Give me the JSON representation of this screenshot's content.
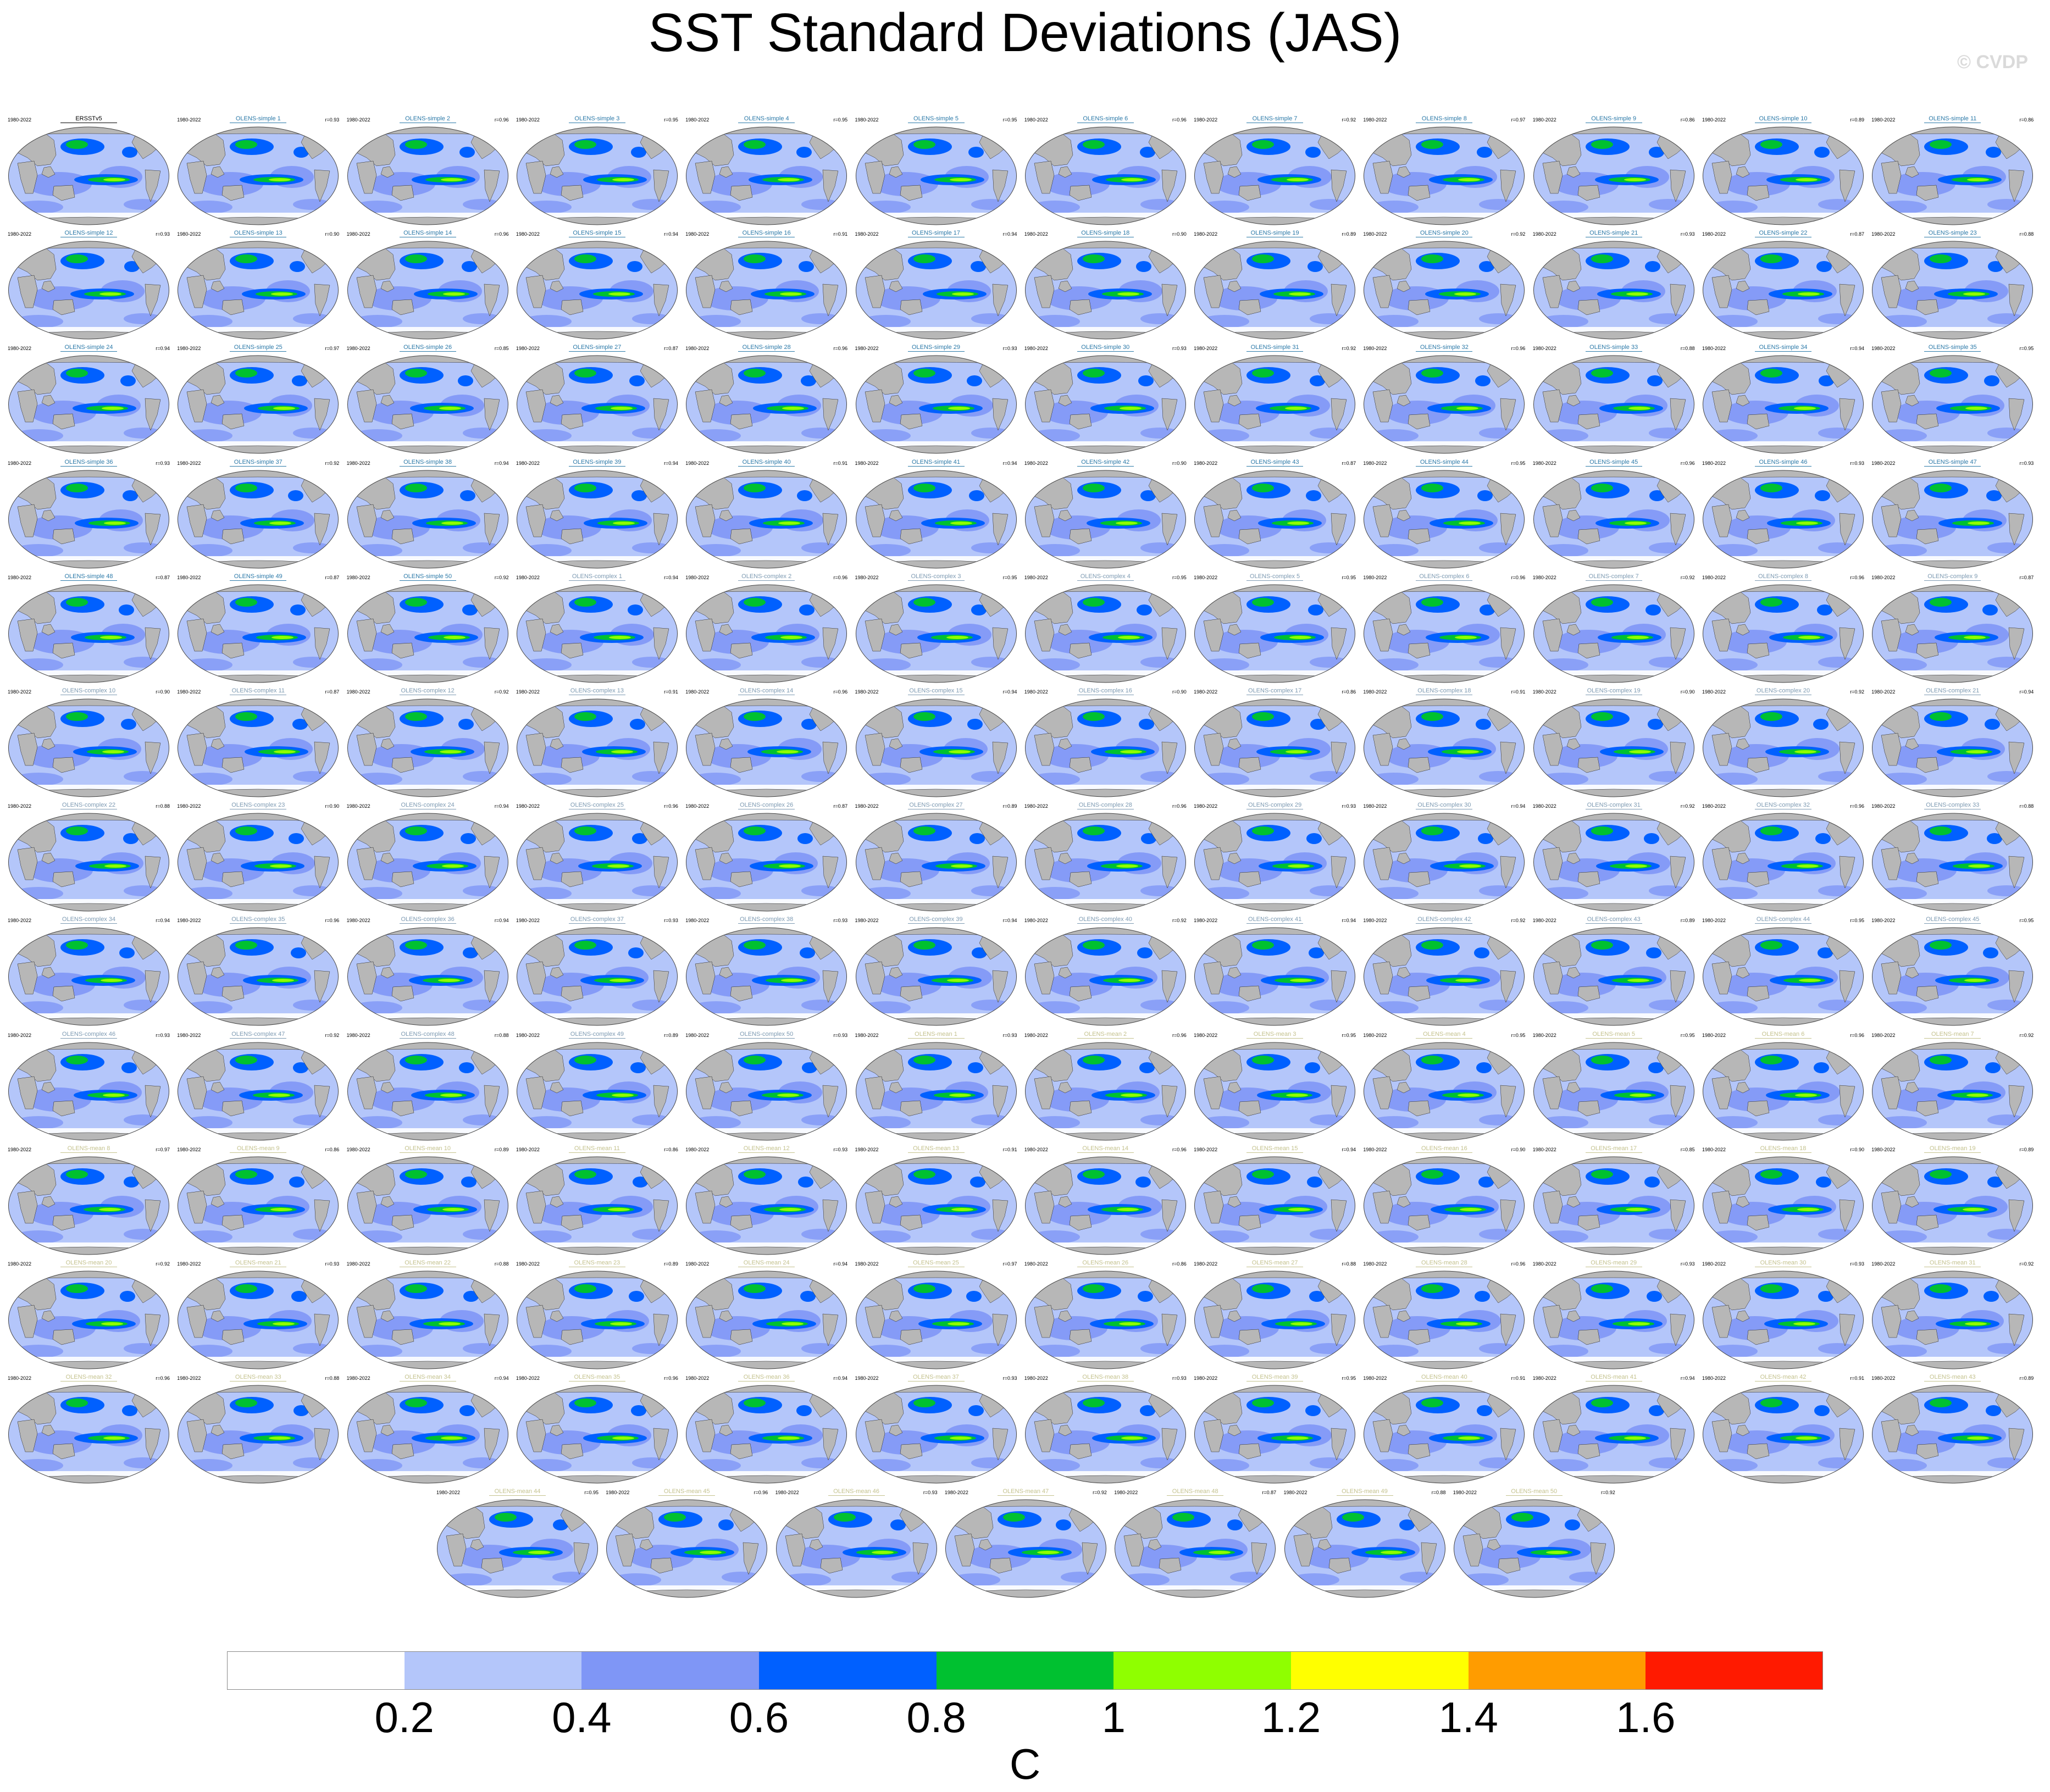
{
  "title": "SST Standard Deviations (JAS)",
  "watermark": "© CVDP",
  "colors": {
    "simple_label": "#2b79a8",
    "complex_label": "#7d9ab2",
    "mean_label": "#c4c28e",
    "obs_label": "#000000",
    "land": "#b7b7b7",
    "ocean_base": "#b5c5f5"
  },
  "chart_data": {
    "type": "heatmap",
    "title": "SST Standard Deviations (JAS)",
    "projection": "Robinson global maps",
    "period": "1980-2022",
    "panels": [
      {
        "name": "ERSSTv5",
        "r": "",
        "group": "obs"
      },
      {
        "name": "OLENS-simple 1",
        "r": "r=0.93",
        "group": "simple"
      },
      {
        "name": "OLENS-simple 2",
        "r": "r=0.96",
        "group": "simple"
      },
      {
        "name": "OLENS-simple 3",
        "r": "r=0.95",
        "group": "simple"
      },
      {
        "name": "OLENS-simple 4",
        "r": "r=0.95",
        "group": "simple"
      },
      {
        "name": "OLENS-simple 5",
        "r": "r=0.95",
        "group": "simple"
      },
      {
        "name": "OLENS-simple 6",
        "r": "r=0.96",
        "group": "simple"
      },
      {
        "name": "OLENS-simple 7",
        "r": "r=0.92",
        "group": "simple"
      },
      {
        "name": "OLENS-simple 8",
        "r": "r=0.97",
        "group": "simple"
      },
      {
        "name": "OLENS-simple 9",
        "r": "r=0.86",
        "group": "simple"
      },
      {
        "name": "OLENS-simple 10",
        "r": "r=0.89",
        "group": "simple"
      },
      {
        "name": "OLENS-simple 11",
        "r": "r=0.86",
        "group": "simple"
      },
      {
        "name": "OLENS-simple 12",
        "r": "r=0.93",
        "group": "simple"
      },
      {
        "name": "OLENS-simple 13",
        "r": "r=0.90",
        "group": "simple"
      },
      {
        "name": "OLENS-simple 14",
        "r": "r=0.96",
        "group": "simple"
      },
      {
        "name": "OLENS-simple 15",
        "r": "r=0.94",
        "group": "simple"
      },
      {
        "name": "OLENS-simple 16",
        "r": "r=0.91",
        "group": "simple"
      },
      {
        "name": "OLENS-simple 17",
        "r": "r=0.94",
        "group": "simple"
      },
      {
        "name": "OLENS-simple 18",
        "r": "r=0.90",
        "group": "simple"
      },
      {
        "name": "OLENS-simple 19",
        "r": "r=0.89",
        "group": "simple"
      },
      {
        "name": "OLENS-simple 20",
        "r": "r=0.92",
        "group": "simple"
      },
      {
        "name": "OLENS-simple 21",
        "r": "r=0.93",
        "group": "simple"
      },
      {
        "name": "OLENS-simple 22",
        "r": "r=0.87",
        "group": "simple"
      },
      {
        "name": "OLENS-simple 23",
        "r": "r=0.88",
        "group": "simple"
      },
      {
        "name": "OLENS-simple 24",
        "r": "r=0.94",
        "group": "simple"
      },
      {
        "name": "OLENS-simple 25",
        "r": "r=0.97",
        "group": "simple"
      },
      {
        "name": "OLENS-simple 26",
        "r": "r=0.85",
        "group": "simple"
      },
      {
        "name": "OLENS-simple 27",
        "r": "r=0.87",
        "group": "simple"
      },
      {
        "name": "OLENS-simple 28",
        "r": "r=0.96",
        "group": "simple"
      },
      {
        "name": "OLENS-simple 29",
        "r": "r=0.93",
        "group": "simple"
      },
      {
        "name": "OLENS-simple 30",
        "r": "r=0.93",
        "group": "simple"
      },
      {
        "name": "OLENS-simple 31",
        "r": "r=0.92",
        "group": "simple"
      },
      {
        "name": "OLENS-simple 32",
        "r": "r=0.96",
        "group": "simple"
      },
      {
        "name": "OLENS-simple 33",
        "r": "r=0.88",
        "group": "simple"
      },
      {
        "name": "OLENS-simple 34",
        "r": "r=0.94",
        "group": "simple"
      },
      {
        "name": "OLENS-simple 35",
        "r": "r=0.95",
        "group": "simple"
      },
      {
        "name": "OLENS-simple 36",
        "r": "r=0.93",
        "group": "simple"
      },
      {
        "name": "OLENS-simple 37",
        "r": "r=0.92",
        "group": "simple"
      },
      {
        "name": "OLENS-simple 38",
        "r": "r=0.94",
        "group": "simple"
      },
      {
        "name": "OLENS-simple 39",
        "r": "r=0.94",
        "group": "simple"
      },
      {
        "name": "OLENS-simple 40",
        "r": "r=0.91",
        "group": "simple"
      },
      {
        "name": "OLENS-simple 41",
        "r": "r=0.94",
        "group": "simple"
      },
      {
        "name": "OLENS-simple 42",
        "r": "r=0.90",
        "group": "simple"
      },
      {
        "name": "OLENS-simple 43",
        "r": "r=0.87",
        "group": "simple"
      },
      {
        "name": "OLENS-simple 44",
        "r": "r=0.95",
        "group": "simple"
      },
      {
        "name": "OLENS-simple 45",
        "r": "r=0.96",
        "group": "simple"
      },
      {
        "name": "OLENS-simple 46",
        "r": "r=0.93",
        "group": "simple"
      },
      {
        "name": "OLENS-simple 47",
        "r": "r=0.93",
        "group": "simple"
      },
      {
        "name": "OLENS-simple 48",
        "r": "r=0.87",
        "group": "simple"
      },
      {
        "name": "OLENS-simple 49",
        "r": "r=0.87",
        "group": "simple"
      },
      {
        "name": "OLENS-simple 50",
        "r": "r=0.92",
        "group": "simple"
      },
      {
        "name": "OLENS-complex 1",
        "r": "r=0.94",
        "group": "complex"
      },
      {
        "name": "OLENS-complex 2",
        "r": "r=0.96",
        "group": "complex"
      },
      {
        "name": "OLENS-complex 3",
        "r": "r=0.95",
        "group": "complex"
      },
      {
        "name": "OLENS-complex 4",
        "r": "r=0.95",
        "group": "complex"
      },
      {
        "name": "OLENS-complex 5",
        "r": "r=0.95",
        "group": "complex"
      },
      {
        "name": "OLENS-complex 6",
        "r": "r=0.96",
        "group": "complex"
      },
      {
        "name": "OLENS-complex 7",
        "r": "r=0.92",
        "group": "complex"
      },
      {
        "name": "OLENS-complex 8",
        "r": "r=0.96",
        "group": "complex"
      },
      {
        "name": "OLENS-complex 9",
        "r": "r=0.87",
        "group": "complex"
      },
      {
        "name": "OLENS-complex 10",
        "r": "r=0.90",
        "group": "complex"
      },
      {
        "name": "OLENS-complex 11",
        "r": "r=0.87",
        "group": "complex"
      },
      {
        "name": "OLENS-complex 12",
        "r": "r=0.92",
        "group": "complex"
      },
      {
        "name": "OLENS-complex 13",
        "r": "r=0.91",
        "group": "complex"
      },
      {
        "name": "OLENS-complex 14",
        "r": "r=0.96",
        "group": "complex"
      },
      {
        "name": "OLENS-complex 15",
        "r": "r=0.94",
        "group": "complex"
      },
      {
        "name": "OLENS-complex 16",
        "r": "r=0.90",
        "group": "complex"
      },
      {
        "name": "OLENS-complex 17",
        "r": "r=0.86",
        "group": "complex"
      },
      {
        "name": "OLENS-complex 18",
        "r": "r=0.91",
        "group": "complex"
      },
      {
        "name": "OLENS-complex 19",
        "r": "r=0.90",
        "group": "complex"
      },
      {
        "name": "OLENS-complex 20",
        "r": "r=0.92",
        "group": "complex"
      },
      {
        "name": "OLENS-complex 21",
        "r": "r=0.94",
        "group": "complex"
      },
      {
        "name": "OLENS-complex 22",
        "r": "r=0.88",
        "group": "complex"
      },
      {
        "name": "OLENS-complex 23",
        "r": "r=0.90",
        "group": "complex"
      },
      {
        "name": "OLENS-complex 24",
        "r": "r=0.94",
        "group": "complex"
      },
      {
        "name": "OLENS-complex 25",
        "r": "r=0.96",
        "group": "complex"
      },
      {
        "name": "OLENS-complex 26",
        "r": "r=0.87",
        "group": "complex"
      },
      {
        "name": "OLENS-complex 27",
        "r": "r=0.89",
        "group": "complex"
      },
      {
        "name": "OLENS-complex 28",
        "r": "r=0.96",
        "group": "complex"
      },
      {
        "name": "OLENS-complex 29",
        "r": "r=0.93",
        "group": "complex"
      },
      {
        "name": "OLENS-complex 30",
        "r": "r=0.94",
        "group": "complex"
      },
      {
        "name": "OLENS-complex 31",
        "r": "r=0.92",
        "group": "complex"
      },
      {
        "name": "OLENS-complex 32",
        "r": "r=0.96",
        "group": "complex"
      },
      {
        "name": "OLENS-complex 33",
        "r": "r=0.88",
        "group": "complex"
      },
      {
        "name": "OLENS-complex 34",
        "r": "r=0.94",
        "group": "complex"
      },
      {
        "name": "OLENS-complex 35",
        "r": "r=0.96",
        "group": "complex"
      },
      {
        "name": "OLENS-complex 36",
        "r": "r=0.94",
        "group": "complex"
      },
      {
        "name": "OLENS-complex 37",
        "r": "r=0.93",
        "group": "complex"
      },
      {
        "name": "OLENS-complex 38",
        "r": "r=0.93",
        "group": "complex"
      },
      {
        "name": "OLENS-complex 39",
        "r": "r=0.94",
        "group": "complex"
      },
      {
        "name": "OLENS-complex 40",
        "r": "r=0.92",
        "group": "complex"
      },
      {
        "name": "OLENS-complex 41",
        "r": "r=0.94",
        "group": "complex"
      },
      {
        "name": "OLENS-complex 42",
        "r": "r=0.92",
        "group": "complex"
      },
      {
        "name": "OLENS-complex 43",
        "r": "r=0.89",
        "group": "complex"
      },
      {
        "name": "OLENS-complex 44",
        "r": "r=0.95",
        "group": "complex"
      },
      {
        "name": "OLENS-complex 45",
        "r": "r=0.95",
        "group": "complex"
      },
      {
        "name": "OLENS-complex 46",
        "r": "r=0.93",
        "group": "complex"
      },
      {
        "name": "OLENS-complex 47",
        "r": "r=0.92",
        "group": "complex"
      },
      {
        "name": "OLENS-complex 48",
        "r": "r=0.88",
        "group": "complex"
      },
      {
        "name": "OLENS-complex 49",
        "r": "r=0.89",
        "group": "complex"
      },
      {
        "name": "OLENS-complex 50",
        "r": "r=0.93",
        "group": "complex"
      },
      {
        "name": "OLENS-mean 1",
        "r": "r=0.93",
        "group": "mean"
      },
      {
        "name": "OLENS-mean 2",
        "r": "r=0.96",
        "group": "mean"
      },
      {
        "name": "OLENS-mean 3",
        "r": "r=0.95",
        "group": "mean"
      },
      {
        "name": "OLENS-mean 4",
        "r": "r=0.95",
        "group": "mean"
      },
      {
        "name": "OLENS-mean 5",
        "r": "r=0.95",
        "group": "mean"
      },
      {
        "name": "OLENS-mean 6",
        "r": "r=0.96",
        "group": "mean"
      },
      {
        "name": "OLENS-mean 7",
        "r": "r=0.92",
        "group": "mean"
      },
      {
        "name": "OLENS-mean 8",
        "r": "r=0.97",
        "group": "mean"
      },
      {
        "name": "OLENS-mean 9",
        "r": "r=0.86",
        "group": "mean"
      },
      {
        "name": "OLENS-mean 10",
        "r": "r=0.89",
        "group": "mean"
      },
      {
        "name": "OLENS-mean 11",
        "r": "r=0.86",
        "group": "mean"
      },
      {
        "name": "OLENS-mean 12",
        "r": "r=0.93",
        "group": "mean"
      },
      {
        "name": "OLENS-mean 13",
        "r": "r=0.91",
        "group": "mean"
      },
      {
        "name": "OLENS-mean 14",
        "r": "r=0.96",
        "group": "mean"
      },
      {
        "name": "OLENS-mean 15",
        "r": "r=0.94",
        "group": "mean"
      },
      {
        "name": "OLENS-mean 16",
        "r": "r=0.90",
        "group": "mean"
      },
      {
        "name": "OLENS-mean 17",
        "r": "r=0.85",
        "group": "mean"
      },
      {
        "name": "OLENS-mean 18",
        "r": "r=0.90",
        "group": "mean"
      },
      {
        "name": "OLENS-mean 19",
        "r": "r=0.89",
        "group": "mean"
      },
      {
        "name": "OLENS-mean 20",
        "r": "r=0.92",
        "group": "mean"
      },
      {
        "name": "OLENS-mean 21",
        "r": "r=0.93",
        "group": "mean"
      },
      {
        "name": "OLENS-mean 22",
        "r": "r=0.88",
        "group": "mean"
      },
      {
        "name": "OLENS-mean 23",
        "r": "r=0.89",
        "group": "mean"
      },
      {
        "name": "OLENS-mean 24",
        "r": "r=0.94",
        "group": "mean"
      },
      {
        "name": "OLENS-mean 25",
        "r": "r=0.97",
        "group": "mean"
      },
      {
        "name": "OLENS-mean 26",
        "r": "r=0.86",
        "group": "mean"
      },
      {
        "name": "OLENS-mean 27",
        "r": "r=0.88",
        "group": "mean"
      },
      {
        "name": "OLENS-mean 28",
        "r": "r=0.96",
        "group": "mean"
      },
      {
        "name": "OLENS-mean 29",
        "r": "r=0.93",
        "group": "mean"
      },
      {
        "name": "OLENS-mean 30",
        "r": "r=0.93",
        "group": "mean"
      },
      {
        "name": "OLENS-mean 31",
        "r": "r=0.92",
        "group": "mean"
      },
      {
        "name": "OLENS-mean 32",
        "r": "r=0.96",
        "group": "mean"
      },
      {
        "name": "OLENS-mean 33",
        "r": "r=0.88",
        "group": "mean"
      },
      {
        "name": "OLENS-mean 34",
        "r": "r=0.94",
        "group": "mean"
      },
      {
        "name": "OLENS-mean 35",
        "r": "r=0.96",
        "group": "mean"
      },
      {
        "name": "OLENS-mean 36",
        "r": "r=0.94",
        "group": "mean"
      },
      {
        "name": "OLENS-mean 37",
        "r": "r=0.93",
        "group": "mean"
      },
      {
        "name": "OLENS-mean 38",
        "r": "r=0.93",
        "group": "mean"
      },
      {
        "name": "OLENS-mean 39",
        "r": "r=0.95",
        "group": "mean"
      },
      {
        "name": "OLENS-mean 40",
        "r": "r=0.91",
        "group": "mean"
      },
      {
        "name": "OLENS-mean 41",
        "r": "r=0.94",
        "group": "mean"
      },
      {
        "name": "OLENS-mean 42",
        "r": "r=0.91",
        "group": "mean"
      },
      {
        "name": "OLENS-mean 43",
        "r": "r=0.89",
        "group": "mean"
      },
      {
        "name": "OLENS-mean 44",
        "r": "r=0.95",
        "group": "mean"
      },
      {
        "name": "OLENS-mean 45",
        "r": "r=0.96",
        "group": "mean"
      },
      {
        "name": "OLENS-mean 46",
        "r": "r=0.93",
        "group": "mean"
      },
      {
        "name": "OLENS-mean 47",
        "r": "r=0.92",
        "group": "mean"
      },
      {
        "name": "OLENS-mean 48",
        "r": "r=0.87",
        "group": "mean"
      },
      {
        "name": "OLENS-mean 49",
        "r": "r=0.88",
        "group": "mean"
      },
      {
        "name": "OLENS-mean 50",
        "r": "r=0.92",
        "group": "mean"
      }
    ],
    "colorbar": {
      "levels": [
        0.2,
        0.4,
        0.6,
        0.8,
        1.0,
        1.2,
        1.4,
        1.6
      ],
      "tick_labels": [
        "0.2",
        "0.4",
        "0.6",
        "0.8",
        "1",
        "1.2",
        "1.4",
        "1.6"
      ],
      "colors": [
        "#ffffff",
        "#b4c6fa",
        "#7f96f6",
        "#0060ff",
        "#00c130",
        "#8fff00",
        "#ffff00",
        "#ff9c00",
        "#ff1a00"
      ],
      "unit": "C"
    }
  }
}
